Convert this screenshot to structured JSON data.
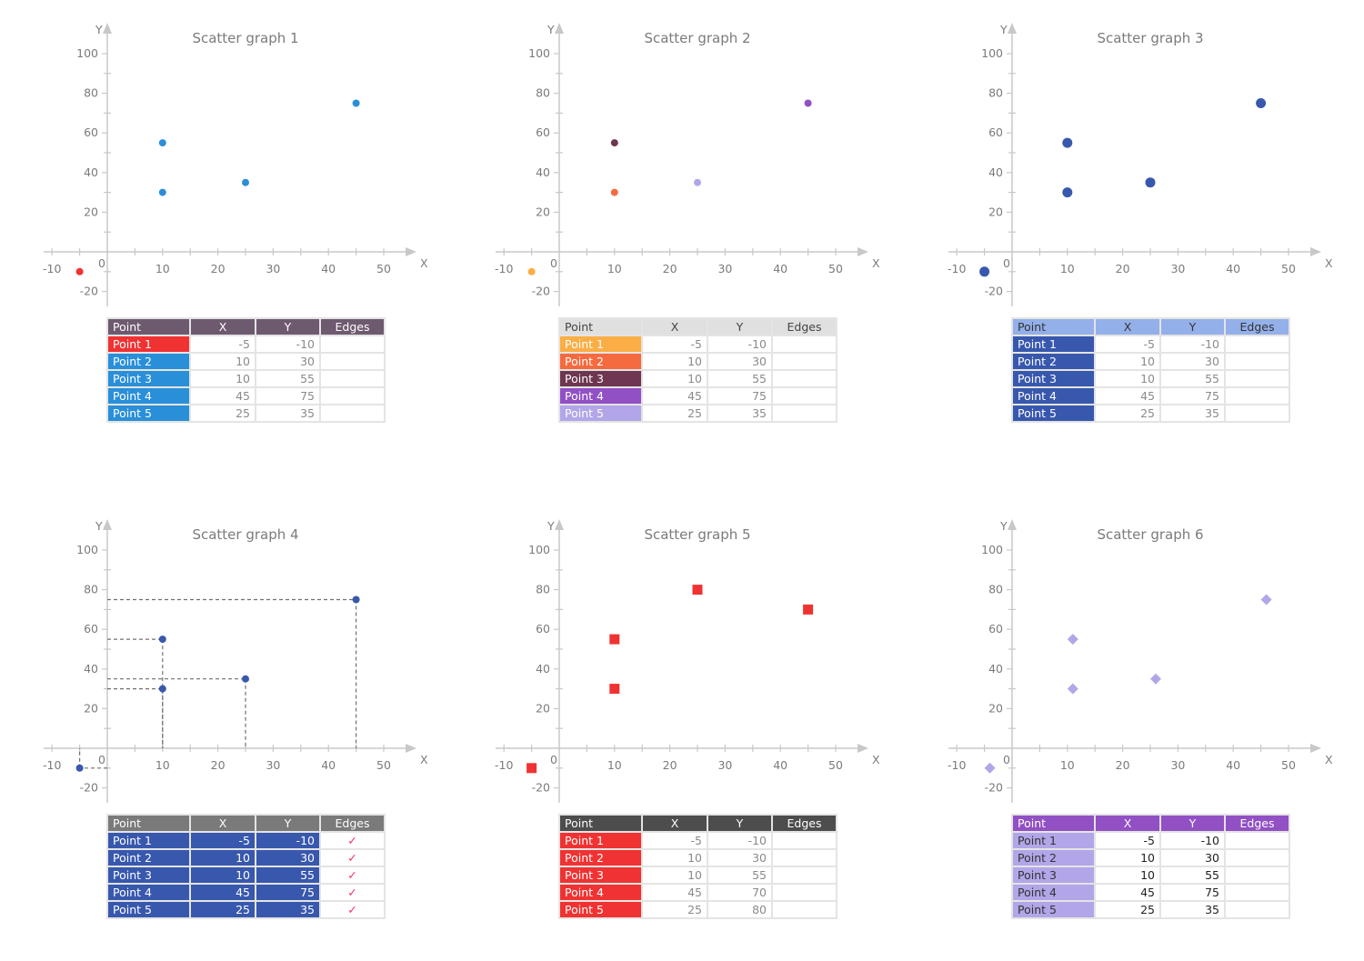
{
  "axis": {
    "x_label": "X",
    "y_label": "Y",
    "x_ticks": [
      -10,
      0,
      10,
      20,
      30,
      40,
      50
    ],
    "y_ticks": [
      -20,
      20,
      40,
      60,
      80,
      100
    ],
    "origin_label": "0",
    "xlim": [
      -10,
      55
    ],
    "ylim": [
      -25,
      110
    ]
  },
  "table_headers": [
    "Point",
    "X",
    "Y",
    "Edges"
  ],
  "chart_data": [
    {
      "type": "scatter",
      "title": "Scatter graph 1",
      "xlabel": "X",
      "ylabel": "Y",
      "marker": "circle",
      "marker_size": "small",
      "guide_lines": false,
      "header_bg": "#6e5a6e",
      "header_fg": "#ffffff",
      "value_bg": "#ffffff",
      "value_fg": "#8a8a8a",
      "points": [
        {
          "label": "Point 1",
          "x": -5,
          "y": -10,
          "color": "#f03232",
          "edges": ""
        },
        {
          "label": "Point 2",
          "x": 10,
          "y": 30,
          "color": "#2a8fd9",
          "edges": ""
        },
        {
          "label": "Point 3",
          "x": 10,
          "y": 55,
          "color": "#2a8fd9",
          "edges": ""
        },
        {
          "label": "Point 4",
          "x": 45,
          "y": 75,
          "color": "#2a8fd9",
          "edges": ""
        },
        {
          "label": "Point 5",
          "x": 25,
          "y": 35,
          "color": "#2a8fd9",
          "edges": ""
        }
      ]
    },
    {
      "type": "scatter",
      "title": "Scatter graph 2",
      "xlabel": "X",
      "ylabel": "Y",
      "marker": "circle",
      "marker_size": "small",
      "guide_lines": false,
      "header_bg": "#e0e0e0",
      "header_fg": "#444444",
      "value_bg": "#ffffff",
      "value_fg": "#8a8a8a",
      "points": [
        {
          "label": "Point 1",
          "x": -5,
          "y": -10,
          "color": "#fbae45",
          "edges": ""
        },
        {
          "label": "Point 2",
          "x": 10,
          "y": 30,
          "color": "#f56a3e",
          "edges": ""
        },
        {
          "label": "Point 3",
          "x": 10,
          "y": 55,
          "color": "#6e3650",
          "edges": ""
        },
        {
          "label": "Point 4",
          "x": 45,
          "y": 75,
          "color": "#9150c4",
          "edges": ""
        },
        {
          "label": "Point 5",
          "x": 25,
          "y": 35,
          "color": "#b2a6e8",
          "edges": ""
        }
      ]
    },
    {
      "type": "scatter",
      "title": "Scatter graph 3",
      "xlabel": "X",
      "ylabel": "Y",
      "marker": "circle",
      "marker_size": "large",
      "guide_lines": false,
      "header_bg": "#94b0ea",
      "header_fg": "#333333",
      "value_bg": "#ffffff",
      "value_fg": "#8a8a8a",
      "points": [
        {
          "label": "Point 1",
          "x": -5,
          "y": -10,
          "color": "#3858ae",
          "edges": ""
        },
        {
          "label": "Point 2",
          "x": 10,
          "y": 30,
          "color": "#3858ae",
          "edges": ""
        },
        {
          "label": "Point 3",
          "x": 10,
          "y": 55,
          "color": "#3858ae",
          "edges": ""
        },
        {
          "label": "Point 4",
          "x": 45,
          "y": 75,
          "color": "#3858ae",
          "edges": ""
        },
        {
          "label": "Point 5",
          "x": 25,
          "y": 35,
          "color": "#3858ae",
          "edges": ""
        }
      ]
    },
    {
      "type": "scatter",
      "title": "Scatter graph 4",
      "xlabel": "X",
      "ylabel": "Y",
      "marker": "circle",
      "marker_size": "small",
      "guide_lines": true,
      "header_bg": "#7a7a7a",
      "header_fg": "#ffffff",
      "value_bg": "#3858ae",
      "value_fg": "#ffffff",
      "points": [
        {
          "label": "Point 1",
          "x": -5,
          "y": -10,
          "color": "#3858ae",
          "edges": "✓"
        },
        {
          "label": "Point 2",
          "x": 10,
          "y": 30,
          "color": "#3858ae",
          "edges": "✓"
        },
        {
          "label": "Point 3",
          "x": 10,
          "y": 55,
          "color": "#3858ae",
          "edges": "✓"
        },
        {
          "label": "Point 4",
          "x": 45,
          "y": 75,
          "color": "#3858ae",
          "edges": "✓"
        },
        {
          "label": "Point 5",
          "x": 25,
          "y": 35,
          "color": "#3858ae",
          "edges": "✓"
        }
      ]
    },
    {
      "type": "scatter",
      "title": "Scatter graph 5",
      "xlabel": "X",
      "ylabel": "Y",
      "marker": "square",
      "marker_size": "large",
      "guide_lines": false,
      "header_bg": "#4d4d4d",
      "header_fg": "#ffffff",
      "value_bg": "#ffffff",
      "value_fg": "#8a8a8a",
      "points": [
        {
          "label": "Point 1",
          "x": -5,
          "y": -10,
          "color": "#f03232",
          "edges": ""
        },
        {
          "label": "Point 2",
          "x": 10,
          "y": 30,
          "color": "#f03232",
          "edges": ""
        },
        {
          "label": "Point 3",
          "x": 10,
          "y": 55,
          "color": "#f03232",
          "edges": ""
        },
        {
          "label": "Point 4",
          "x": 45,
          "y": 70,
          "color": "#f03232",
          "edges": ""
        },
        {
          "label": "Point 5",
          "x": 25,
          "y": 80,
          "color": "#f03232",
          "edges": ""
        }
      ]
    },
    {
      "type": "scatter",
      "title": "Scatter graph 6",
      "xlabel": "X",
      "ylabel": "Y",
      "marker": "diamond",
      "marker_size": "large",
      "guide_lines": false,
      "header_bg": "#9150c4",
      "header_fg": "#ffffff",
      "value_bg": "#ffffff",
      "value_fg": "#222222",
      "label_fg": "#333333",
      "points": [
        {
          "label": "Point 1",
          "x": -5,
          "y": -10,
          "color": "#b2a6e8",
          "edges": ""
        },
        {
          "label": "Point 2",
          "x": 10,
          "y": 30,
          "color": "#b2a6e8",
          "edges": ""
        },
        {
          "label": "Point 3",
          "x": 10,
          "y": 55,
          "color": "#b2a6e8",
          "edges": ""
        },
        {
          "label": "Point 4",
          "x": 45,
          "y": 75,
          "color": "#b2a6e8",
          "edges": ""
        },
        {
          "label": "Point 5",
          "x": 25,
          "y": 35,
          "color": "#b2a6e8",
          "edges": ""
        }
      ]
    }
  ]
}
